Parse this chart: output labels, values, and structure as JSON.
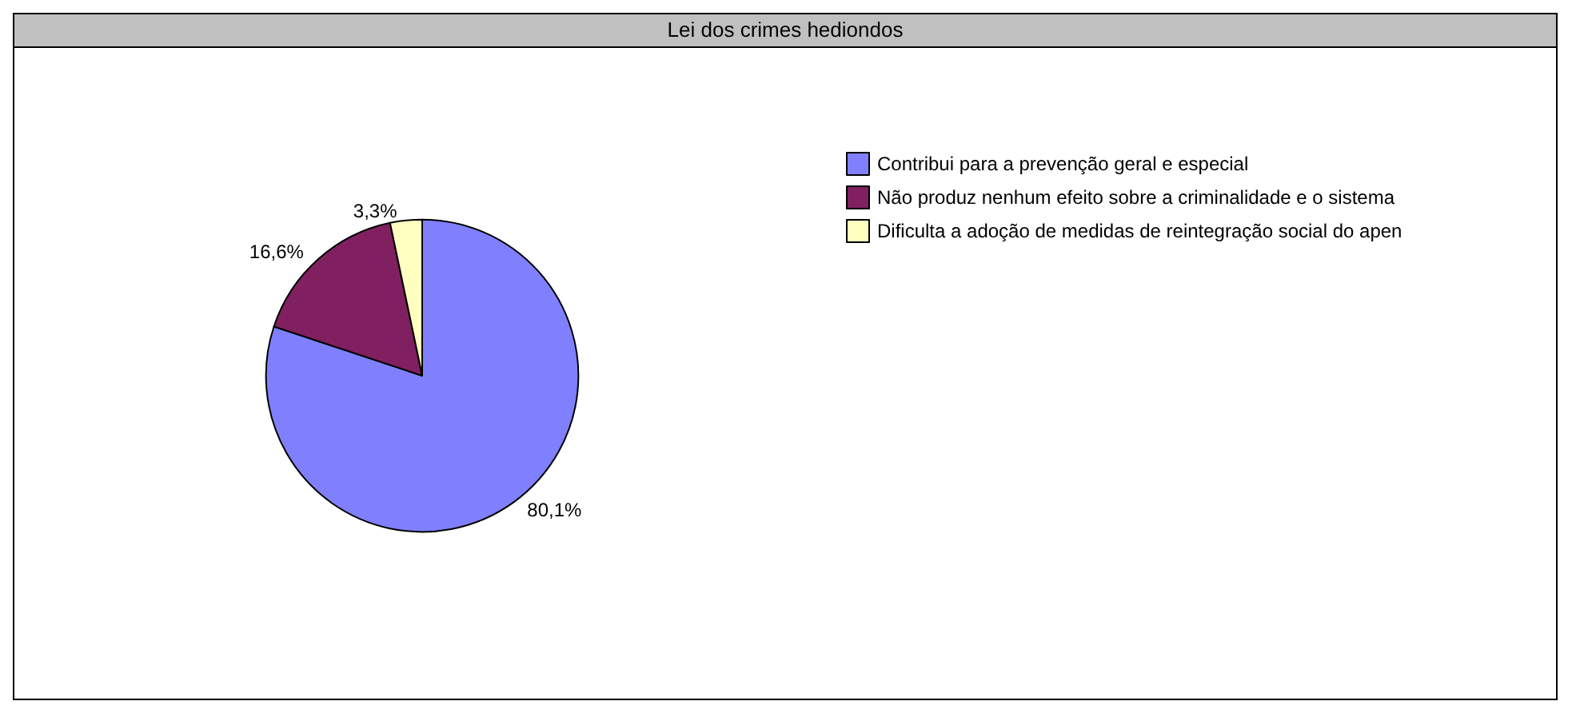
{
  "chart_data": {
    "type": "pie",
    "title": "Lei dos crimes hediondos",
    "categories": [
      "Contribui para a prevenção geral e especial",
      "Não produz nenhum efeito sobre a criminalidade e o sistema",
      "Dificulta a adoção de medidas de reintegração social do apen"
    ],
    "values": [
      80.1,
      16.6,
      3.3
    ],
    "value_labels": [
      "80,1%",
      "16,6%",
      "3,3%"
    ],
    "colors": [
      "#8080ff",
      "#802060",
      "#ffffc0"
    ],
    "legend": "right"
  }
}
